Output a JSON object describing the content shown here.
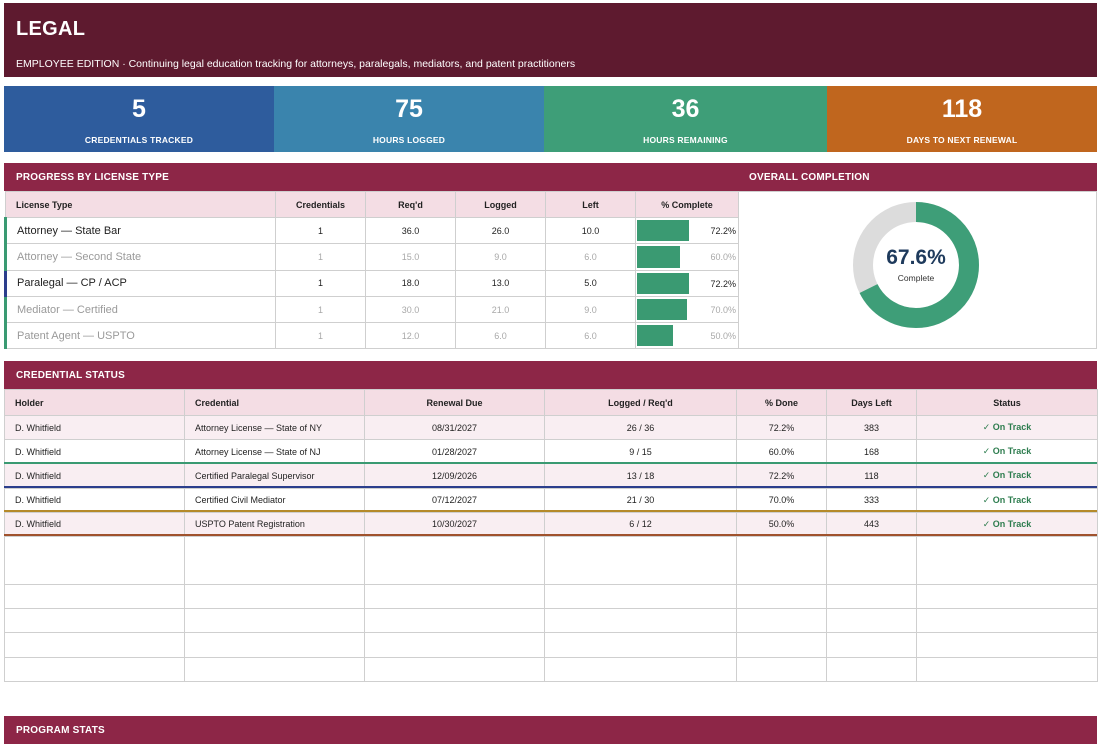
{
  "header": {
    "title": "LEGAL",
    "subtitle": "EMPLOYEE EDITION  ·  Continuing legal education tracking for attorneys, paralegals, mediators, and patent practitioners"
  },
  "kpis": [
    {
      "value": "5",
      "label": "CREDENTIALS TRACKED",
      "color": "#2e5c9d"
    },
    {
      "value": "75",
      "label": "HOURS LOGGED",
      "color": "#3a84ad"
    },
    {
      "value": "36",
      "label": "HOURS REMAINING",
      "color": "#3e9e78"
    },
    {
      "value": "118",
      "label": "DAYS TO NEXT RENEWAL",
      "color": "#c0661e"
    }
  ],
  "progress": {
    "title": "PROGRESS BY LICENSE TYPE",
    "columns": [
      "License Type",
      "Credentials",
      "Req'd",
      "Logged",
      "Left",
      "% Complete"
    ],
    "rows": [
      {
        "type": "Attorney — State Bar",
        "credentials": "1",
        "reqd": "36.0",
        "logged": "26.0",
        "left": "10.0",
        "pct_label": "72.2%",
        "pct": 72.2,
        "muted": false,
        "accent": "#3a9a72"
      },
      {
        "type": "Attorney — Second State",
        "credentials": "1",
        "reqd": "15.0",
        "logged": "9.0",
        "left": "6.0",
        "pct_label": "60.0%",
        "pct": 60.0,
        "muted": true,
        "accent": "#3a9a72"
      },
      {
        "type": "Paralegal — CP / ACP",
        "credentials": "1",
        "reqd": "18.0",
        "logged": "13.0",
        "left": "5.0",
        "pct_label": "72.2%",
        "pct": 72.2,
        "muted": false,
        "accent": "#2c3e8c"
      },
      {
        "type": "Mediator — Certified",
        "credentials": "1",
        "reqd": "30.0",
        "logged": "21.0",
        "left": "9.0",
        "pct_label": "70.0%",
        "pct": 70.0,
        "muted": true,
        "accent": "#3a9a72"
      },
      {
        "type": "Patent Agent — USPTO",
        "credentials": "1",
        "reqd": "12.0",
        "logged": "6.0",
        "left": "6.0",
        "pct_label": "50.0%",
        "pct": 50.0,
        "muted": true,
        "accent": "#3a9a72"
      }
    ]
  },
  "overall": {
    "title": "OVERALL COMPLETION",
    "value_label": "67.6%",
    "value": 67.6,
    "caption": "Complete",
    "fill_color": "#3e9e78",
    "track_color": "#dcdcdc"
  },
  "status": {
    "title": "CREDENTIAL STATUS",
    "columns": [
      "Holder",
      "Credential",
      "Renewal Due",
      "Logged / Req'd",
      "% Done",
      "Days Left",
      "Status"
    ],
    "rows": [
      {
        "holder": "D. Whitfield",
        "credential": "Attorney License — State of NY",
        "due": "08/31/2027",
        "logged": "26 / 36",
        "done": "72.2%",
        "days": "383",
        "status": "✓ On Track"
      },
      {
        "holder": "D. Whitfield",
        "credential": "Attorney License — State of NJ",
        "due": "01/28/2027",
        "logged": "9 / 15",
        "done": "60.0%",
        "days": "168",
        "status": "✓ On Track"
      },
      {
        "holder": "D. Whitfield",
        "credential": "Certified Paralegal Supervisor",
        "due": "12/09/2026",
        "logged": "13 / 18",
        "done": "72.2%",
        "days": "118",
        "status": "✓ On Track"
      },
      {
        "holder": "D. Whitfield",
        "credential": "Certified Civil Mediator",
        "due": "07/12/2027",
        "logged": "21 / 30",
        "done": "70.0%",
        "days": "333",
        "status": "✓ On Track"
      },
      {
        "holder": "D. Whitfield",
        "credential": "USPTO Patent Registration",
        "due": "10/30/2027",
        "logged": "6 / 12",
        "done": "50.0%",
        "days": "443",
        "status": "✓ On Track"
      }
    ],
    "row_rule_colors": [
      "#3a9a72",
      "#2c3e8c",
      "#b58a2a",
      "#a0522d"
    ]
  },
  "program_stats": {
    "title": "PROGRAM STATS"
  }
}
